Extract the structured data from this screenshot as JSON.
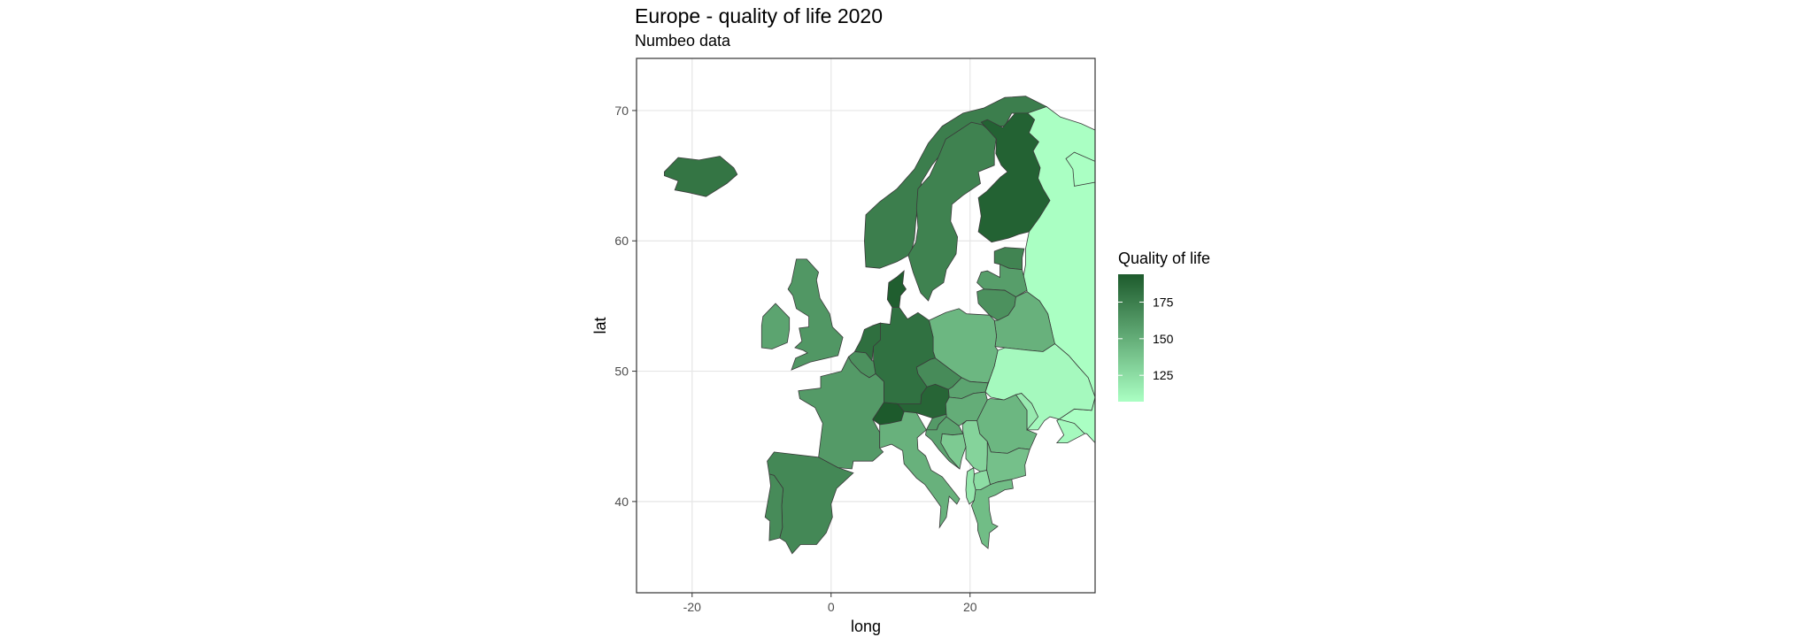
{
  "title": "Europe - quality of life 2020",
  "subtitle": "Numbeo data",
  "chart_data": {
    "type": "choropleth",
    "xlabel": "long",
    "ylabel": "lat",
    "xlim": [
      -28,
      38
    ],
    "ylim": [
      33,
      74
    ],
    "x_ticks": [
      -20,
      0,
      20
    ],
    "y_ticks": [
      40,
      50,
      60,
      70
    ],
    "grid": true,
    "legend": {
      "title": "Quality of life",
      "position": "right",
      "breaks": [
        175,
        150,
        125
      ],
      "range": [
        107,
        194
      ],
      "low_color": "#aaffc3",
      "high_color": "#1d5a2c"
    },
    "regions": [
      {
        "name": "Iceland",
        "value": 180
      },
      {
        "name": "Norway",
        "value": 175
      },
      {
        "name": "Sweden",
        "value": 173
      },
      {
        "name": "Finland",
        "value": 190
      },
      {
        "name": "Russia",
        "value": 107
      },
      {
        "name": "Estonia",
        "value": 172
      },
      {
        "name": "Latvia",
        "value": 158
      },
      {
        "name": "Lithuania",
        "value": 165
      },
      {
        "name": "Belarus",
        "value": 148
      },
      {
        "name": "Ukraine",
        "value": 110
      },
      {
        "name": "Poland",
        "value": 145
      },
      {
        "name": "Denmark",
        "value": 192
      },
      {
        "name": "Germany",
        "value": 182
      },
      {
        "name": "Netherlands",
        "value": 183
      },
      {
        "name": "Belgium",
        "value": 165
      },
      {
        "name": "United Kingdom",
        "value": 162
      },
      {
        "name": "Ireland",
        "value": 155
      },
      {
        "name": "France",
        "value": 160
      },
      {
        "name": "Spain",
        "value": 170
      },
      {
        "name": "Portugal",
        "value": 168
      },
      {
        "name": "Switzerland",
        "value": 194
      },
      {
        "name": "Austria",
        "value": 188
      },
      {
        "name": "Czechia",
        "value": 168
      },
      {
        "name": "Slovakia",
        "value": 155
      },
      {
        "name": "Hungary",
        "value": 150
      },
      {
        "name": "Slovenia",
        "value": 160
      },
      {
        "name": "Croatia",
        "value": 155
      },
      {
        "name": "Italy",
        "value": 148
      },
      {
        "name": "Romania",
        "value": 145
      },
      {
        "name": "Moldova",
        "value": 118
      },
      {
        "name": "Serbia",
        "value": 130
      },
      {
        "name": "Bulgaria",
        "value": 140
      },
      {
        "name": "Greece",
        "value": 142
      },
      {
        "name": "North Macedonia",
        "value": 125
      },
      {
        "name": "Albania",
        "value": 120
      },
      {
        "name": "Bosnia",
        "value": 135
      }
    ]
  }
}
